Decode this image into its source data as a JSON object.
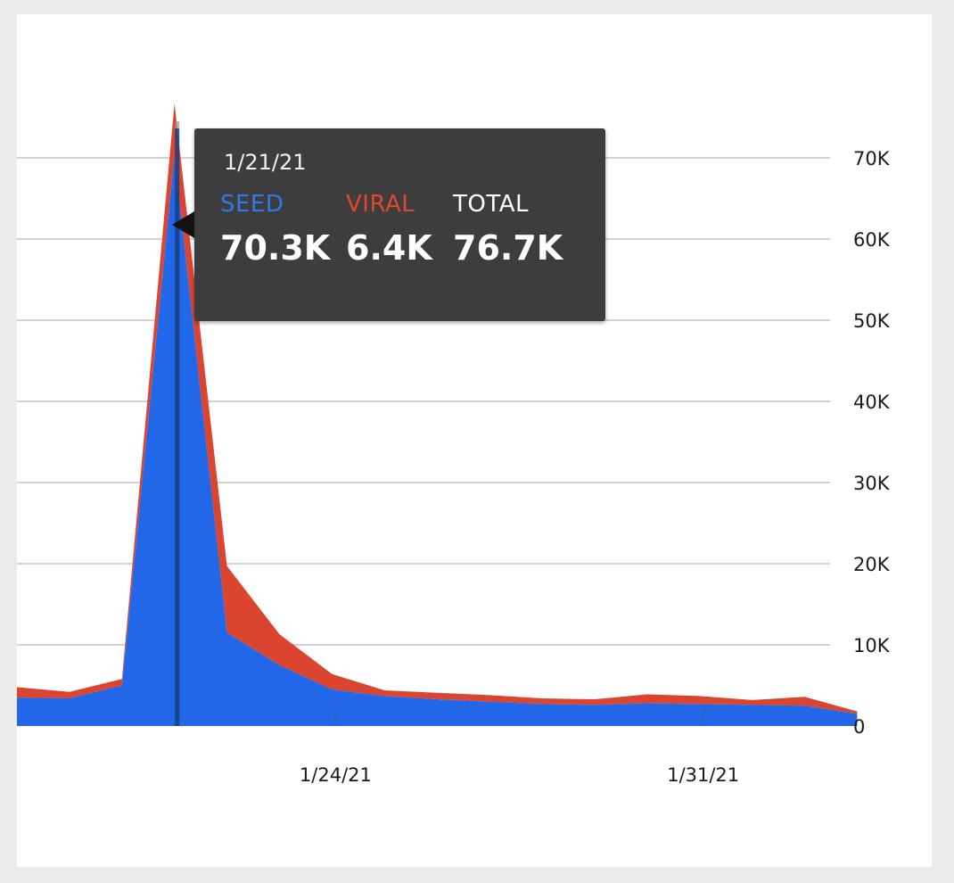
{
  "colors": {
    "background": "#ebebeb",
    "card": "#ffffff",
    "seed": "#2167e7",
    "viral": "#db4530",
    "grid": "#c4c4c4",
    "cursor": "#1b3f80",
    "tooltip_bg": "#3d3d3d",
    "total_label": "#ffffff"
  },
  "tooltip": {
    "date": "1/21/21",
    "seed_label": "SEED",
    "viral_label": "VIRAL",
    "total_label": "TOTAL",
    "seed_value": "70.3K",
    "viral_value": "6.4K",
    "total_value": "76.7K"
  },
  "chart_data": {
    "type": "area",
    "stacked": true,
    "x": [
      "1/18/21",
      "1/19/21",
      "1/20/21",
      "1/21/21",
      "1/22/21",
      "1/23/21",
      "1/24/21",
      "1/25/21",
      "1/26/21",
      "1/27/21",
      "1/28/21",
      "1/29/21",
      "1/30/21",
      "1/31/21",
      "2/1/21",
      "2/2/21",
      "2/3/21"
    ],
    "x_tick_labels": [
      "1/24/21",
      "1/31/21"
    ],
    "series": [
      {
        "name": "SEED",
        "color": "#2167e7",
        "values": [
          3500,
          3400,
          5000,
          70300,
          11500,
          7500,
          4500,
          3700,
          3300,
          3000,
          2700,
          2600,
          2800,
          2700,
          2600,
          2500,
          1500
        ]
      },
      {
        "name": "VIRAL",
        "color": "#db4530",
        "values": [
          1300,
          800,
          800,
          6400,
          8200,
          3800,
          1900,
          700,
          800,
          800,
          700,
          700,
          1100,
          1000,
          600,
          1100,
          300
        ]
      }
    ],
    "y_axis": {
      "position": "right",
      "ylim": [
        0,
        80000
      ],
      "ticks": [
        0,
        10000,
        20000,
        30000,
        40000,
        50000,
        60000,
        70000
      ],
      "tick_labels": [
        "0",
        "10K",
        "20K",
        "30K",
        "40K",
        "50K",
        "60K",
        "70K"
      ]
    },
    "grid": true,
    "highlighted_x": "1/21/21",
    "xlabel": "",
    "ylabel": ""
  }
}
